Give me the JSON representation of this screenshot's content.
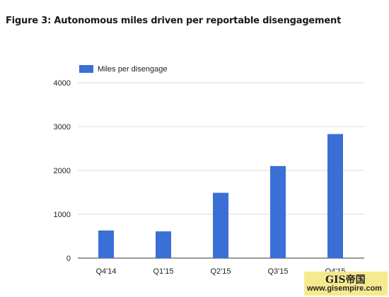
{
  "figure": {
    "title": "Figure 3: Autonomous miles driven per reportable disengagement"
  },
  "colors": {
    "bar": "#3a6fd6",
    "grid": "#d9d9d9",
    "axis": "#333333"
  },
  "chart_data": {
    "type": "bar",
    "categories": [
      "Q4'14",
      "Q1'15",
      "Q2'15",
      "Q3'15",
      "Q4'15"
    ],
    "series": [
      {
        "name": "Miles per disengage",
        "values": [
          630,
          610,
          1490,
          2100,
          2830
        ]
      }
    ],
    "yticks": [
      "0",
      "1000",
      "2000",
      "3000",
      "4000"
    ],
    "ylim": [
      0,
      4000
    ],
    "grid": true,
    "legend": "top-left"
  },
  "watermark": {
    "brand": "GIS帝国",
    "url": "www.gisempire.com"
  }
}
